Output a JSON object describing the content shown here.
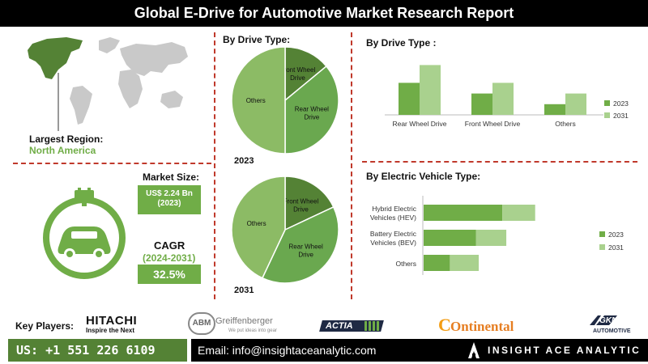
{
  "title": "Global E-Drive for Automotive Market Research Report",
  "left": {
    "largest_region_label": "Largest Region:",
    "largest_region_value": "North America",
    "market_size_label": "Market Size:",
    "market_size_value": "US$ 2.24 Bn",
    "market_size_year": "(2023)",
    "cagr_label": "CAGR",
    "cagr_period": "(2024-2031)",
    "cagr_value": "32.5%"
  },
  "colors": {
    "dark_green": "#548235",
    "mid_green": "#70ad47",
    "light_green": "#a9d18e",
    "pie_light": "#8cbb65",
    "pie_dark": "#6aa84f",
    "pie_darkest": "#548235",
    "divider": "#c0392b"
  },
  "pie_section": {
    "heading": "By Drive Type:"
  },
  "chart_data": [
    {
      "type": "pie",
      "title": "2023",
      "labels": [
        "Front Wheel Drive",
        "Rear Wheel Drive",
        "Others"
      ],
      "values": [
        14,
        36,
        50
      ]
    },
    {
      "type": "pie",
      "title": "2031",
      "labels": [
        "Front Wheel Drive",
        "Rear Wheel Drive",
        "Others"
      ],
      "values": [
        18,
        39,
        43
      ]
    },
    {
      "type": "bar",
      "title": "By  Drive Type :",
      "categories": [
        "Rear Wheel Drive",
        "Front Wheel Drive",
        "Others"
      ],
      "series": [
        {
          "name": "2023",
          "values": [
            0.9,
            0.6,
            0.3
          ]
        },
        {
          "name": "2031",
          "values": [
            1.4,
            0.9,
            0.6
          ]
        }
      ],
      "legend": "right"
    },
    {
      "type": "bar",
      "orientation": "horizontal",
      "stacked": true,
      "title": "By Electric Vehicle Type:",
      "categories": [
        "Hybrid Electric Vehicles (HEV)",
        "Battery Electric Vehicles (BEV)",
        "Others"
      ],
      "series": [
        {
          "name": "2023",
          "values": [
            0.6,
            0.4,
            0.2
          ]
        },
        {
          "name": "2031",
          "values": [
            0.85,
            0.63,
            0.42
          ]
        }
      ],
      "legend": "right"
    }
  ],
  "key_players_label": "Key Players:",
  "players": {
    "hitachi": "HITACHI",
    "hitachi_tag": "Inspire the Next",
    "abm_badge": "ABM",
    "abm": "Greiffenberger",
    "abm_tag": "We put ideas into gear",
    "actia": "ACTIA",
    "continental": "Ontinental",
    "continental_c": "C",
    "gkn": "GKN",
    "gkn_tag": "AUTOMOTIVE"
  },
  "footer": {
    "phone": "US: +1 551 226 6109",
    "email": "Email: info@insightaceanalytic.com",
    "brand": "INSIGHT ACE ANALYTIC"
  }
}
